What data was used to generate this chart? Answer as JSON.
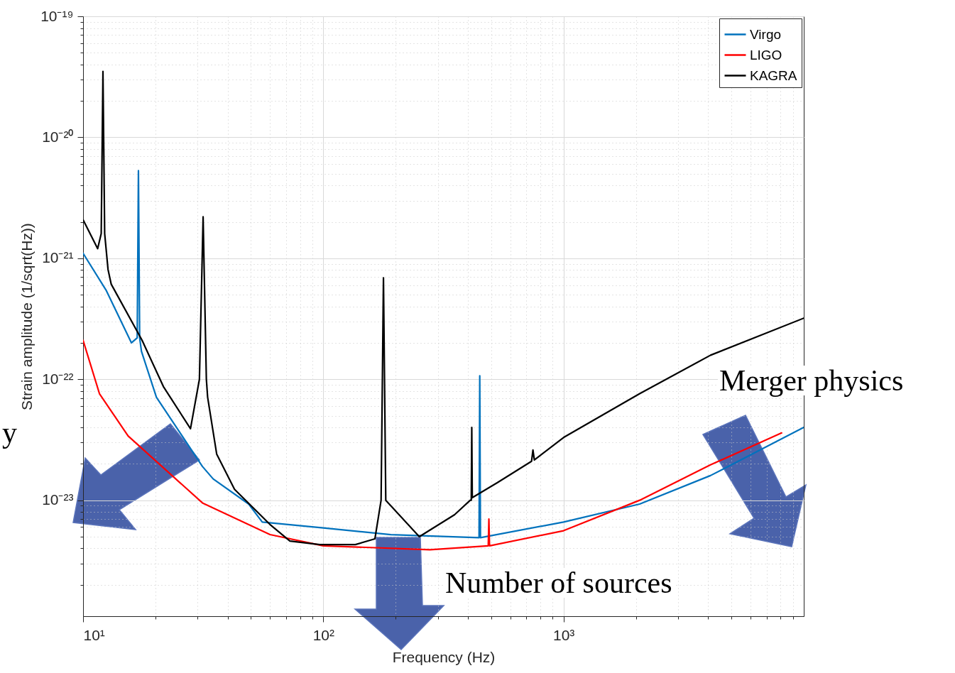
{
  "chart_data": {
    "type": "line",
    "xlabel": "Frequency (Hz)",
    "ylabel": "Strain amplitude (1/sqrt(Hz))",
    "log": "xy",
    "grid": true,
    "legend": "top right",
    "line_style": "solid",
    "marker": "none",
    "xlim": [
      10,
      10000
    ],
    "ylim": [
      1.1e-24,
      1e-19
    ],
    "xticks": [
      {
        "value": 10,
        "label": "10¹"
      },
      {
        "value": 20,
        "label": null
      },
      {
        "value": 30,
        "label": null
      },
      {
        "value": 40,
        "label": null
      },
      {
        "value": 50,
        "label": null
      },
      {
        "value": 60,
        "label": null
      },
      {
        "value": 70,
        "label": null
      },
      {
        "value": 80,
        "label": null
      },
      {
        "value": 90,
        "label": null
      },
      {
        "value": 100,
        "label": "10²"
      },
      {
        "value": 200,
        "label": null
      },
      {
        "value": 300,
        "label": null
      },
      {
        "value": 400,
        "label": null
      },
      {
        "value": 500,
        "label": null
      },
      {
        "value": 600,
        "label": null
      },
      {
        "value": 700,
        "label": null
      },
      {
        "value": 800,
        "label": null
      },
      {
        "value": 900,
        "label": null
      },
      {
        "value": 1000,
        "label": "10³"
      },
      {
        "value": 2000,
        "label": null
      },
      {
        "value": 3000,
        "label": null
      },
      {
        "value": 4000,
        "label": null
      },
      {
        "value": 5000,
        "label": null
      },
      {
        "value": 6000,
        "label": null
      },
      {
        "value": 7000,
        "label": null
      },
      {
        "value": 8000,
        "label": null
      },
      {
        "value": 9000,
        "label": null
      }
    ],
    "yticks": [
      {
        "value": 2e-24,
        "label": null
      },
      {
        "value": 3e-24,
        "label": null
      },
      {
        "value": 4e-24,
        "label": null
      },
      {
        "value": 5e-24,
        "label": null
      },
      {
        "value": 6e-24,
        "label": null
      },
      {
        "value": 7e-24,
        "label": null
      },
      {
        "value": 8e-24,
        "label": null
      },
      {
        "value": 9e-24,
        "label": null
      },
      {
        "value": 1e-23,
        "label": "10⁻²³"
      },
      {
        "value": 2e-23,
        "label": null
      },
      {
        "value": 3e-23,
        "label": null
      },
      {
        "value": 4e-23,
        "label": null
      },
      {
        "value": 5e-23,
        "label": null
      },
      {
        "value": 6e-23,
        "label": null
      },
      {
        "value": 7e-23,
        "label": null
      },
      {
        "value": 8e-23,
        "label": null
      },
      {
        "value": 9e-23,
        "label": null
      },
      {
        "value": 1e-22,
        "label": "10⁻²²"
      },
      {
        "value": 2e-22,
        "label": null
      },
      {
        "value": 3e-22,
        "label": null
      },
      {
        "value": 4e-22,
        "label": null
      },
      {
        "value": 5e-22,
        "label": null
      },
      {
        "value": 6e-22,
        "label": null
      },
      {
        "value": 7e-22,
        "label": null
      },
      {
        "value": 8e-22,
        "label": null
      },
      {
        "value": 9e-22,
        "label": null
      },
      {
        "value": 1e-21,
        "label": "10⁻²¹"
      },
      {
        "value": 2e-21,
        "label": null
      },
      {
        "value": 3e-21,
        "label": null
      },
      {
        "value": 4e-21,
        "label": null
      },
      {
        "value": 5e-21,
        "label": null
      },
      {
        "value": 6e-21,
        "label": null
      },
      {
        "value": 7e-21,
        "label": null
      },
      {
        "value": 8e-21,
        "label": null
      },
      {
        "value": 9e-21,
        "label": null
      },
      {
        "value": 1e-20,
        "label": "10⁻²⁰"
      },
      {
        "value": 2e-20,
        "label": null
      },
      {
        "value": 3e-20,
        "label": null
      },
      {
        "value": 4e-20,
        "label": null
      },
      {
        "value": 5e-20,
        "label": null
      },
      {
        "value": 6e-20,
        "label": null
      },
      {
        "value": 7e-20,
        "label": null
      },
      {
        "value": 8e-20,
        "label": null
      },
      {
        "value": 9e-20,
        "label": null
      },
      {
        "value": 1e-19,
        "label": "10⁻¹⁹"
      }
    ],
    "annotations": [
      "Merger physics",
      "Number of sources",
      "y"
    ],
    "series": [
      {
        "name": "Virgo",
        "color": "#0072bd",
        "x": [
          10,
          12.5,
          15.9,
          16.8,
          17,
          17.2,
          17.5,
          20.2,
          31.4,
          34.8,
          48.9,
          55.7,
          100,
          191,
          445,
          448,
          451,
          1000,
          2075,
          4090,
          10000
        ],
        "values": [
          1.1e-21,
          5.4e-22,
          2e-22,
          2.2e-22,
          5.3e-21,
          2.2e-22,
          1.7e-22,
          7.1e-23,
          1.9e-23,
          1.5e-23,
          9.3e-24,
          6.6e-24,
          5.9e-24,
          5.2e-24,
          4.9e-24,
          1.07e-22,
          4.9e-24,
          6.6e-24,
          9.3e-24,
          1.6e-23,
          4e-23
        ]
      },
      {
        "name": "LIGO",
        "color": "#ff0000",
        "x": [
          10,
          11.7,
          15.4,
          31.4,
          60,
          100,
          278,
          486,
          489,
          492,
          1000,
          2075,
          4090,
          8090
        ],
        "values": [
          2.1e-22,
          7.6e-23,
          3.4e-23,
          9.5e-24,
          5.2e-24,
          4.2e-24,
          3.9e-24,
          4.2e-24,
          7e-24,
          4.2e-24,
          5.6e-24,
          1e-23,
          1.96e-23,
          3.6e-23
        ]
      },
      {
        "name": "KAGRA",
        "color": "#000000",
        "x": [
          10,
          11.5,
          11.9,
          12.1,
          12.3,
          12.7,
          13.1,
          17.6,
          21.6,
          28,
          30.5,
          31.6,
          32.6,
          33,
          36,
          42.7,
          60,
          72.6,
          96.6,
          136,
          164,
          174,
          178,
          182,
          251,
          352,
          409,
          413,
          415,
          417,
          531,
          736,
          746,
          756,
          1000,
          2075,
          4090,
          10000
        ],
        "values": [
          2.08e-21,
          1.2e-21,
          1.6e-21,
          3.5e-20,
          1.6e-21,
          8.1e-22,
          6.1e-22,
          2.1e-22,
          8.7e-23,
          3.9e-23,
          1e-22,
          2.2e-21,
          1e-22,
          7.1e-23,
          2.4e-23,
          1.23e-23,
          6.3e-24,
          4.6e-24,
          4.3e-24,
          4.3e-24,
          4.8e-24,
          1e-23,
          6.9e-22,
          1e-23,
          5e-24,
          7.6e-24,
          1e-23,
          1e-23,
          4e-23,
          1.05e-23,
          1.4e-23,
          2.1e-23,
          2.6e-23,
          2.15e-23,
          3.3e-23,
          7.6e-23,
          1.58e-22,
          3.2e-22
        ]
      }
    ]
  }
}
